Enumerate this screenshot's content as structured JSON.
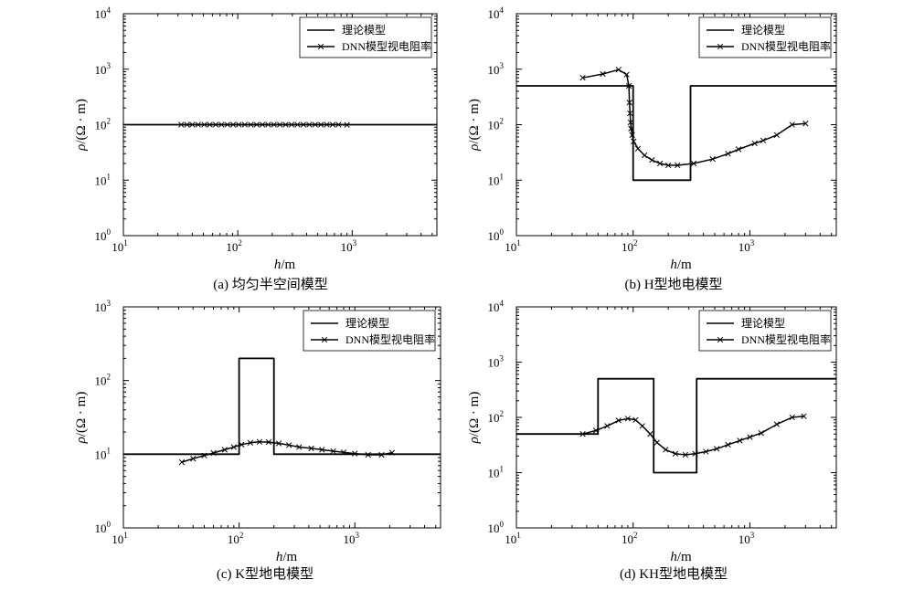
{
  "figure": {
    "panels": [
      {
        "caption": "(a) 均匀半空间模型"
      },
      {
        "caption": "(b) H型地电模型"
      },
      {
        "caption": "(c) K型地电模型"
      },
      {
        "caption": "(d) KH型地电模型"
      }
    ]
  },
  "chart_data": [
    {
      "type": "line",
      "title": "(a) 均匀半空间模型",
      "xlabel": "h/m",
      "ylabel": "ρ/(Ω · m)",
      "xscale": "log",
      "yscale": "log",
      "xlim": [
        10,
        5500
      ],
      "ylim": [
        1,
        10000
      ],
      "xticks": [
        {
          "base": "10",
          "exp": "1"
        },
        {
          "base": "10",
          "exp": "2"
        },
        {
          "base": "10",
          "exp": "3"
        }
      ],
      "yticks": [
        {
          "base": "10",
          "exp": "0"
        },
        {
          "base": "10",
          "exp": "1"
        },
        {
          "base": "10",
          "exp": "2"
        },
        {
          "base": "10",
          "exp": "3"
        },
        {
          "base": "10",
          "exp": "4"
        }
      ],
      "legend_position": "top-right",
      "grid": false,
      "series": [
        {
          "name": "理论模型",
          "style": "step",
          "x": [
            10,
            5500
          ],
          "y": [
            100,
            100
          ]
        },
        {
          "name": "DNN模型视电阻率",
          "style": "line-x",
          "x": [
            32,
            36,
            40,
            45,
            51,
            57,
            64,
            72,
            81,
            91,
            102,
            115,
            130,
            146,
            164,
            184,
            207,
            233,
            262,
            295,
            332,
            374,
            421,
            474,
            533,
            600,
            675,
            760,
            900
          ],
          "y": [
            100,
            100,
            100,
            100,
            100,
            100,
            100,
            100,
            100,
            100,
            100,
            100,
            100,
            100,
            100,
            100,
            100,
            100,
            100,
            100,
            100,
            100,
            100,
            100,
            100,
            100,
            100,
            100,
            99
          ]
        }
      ]
    },
    {
      "type": "line",
      "title": "(b) H型地电模型",
      "xlabel": "h/m",
      "ylabel": "ρ/(Ω · m)",
      "xscale": "log",
      "yscale": "log",
      "xlim": [
        10,
        5500
      ],
      "ylim": [
        1,
        10000
      ],
      "xticks": [
        {
          "base": "10",
          "exp": "1"
        },
        {
          "base": "10",
          "exp": "2"
        },
        {
          "base": "10",
          "exp": "3"
        }
      ],
      "yticks": [
        {
          "base": "10",
          "exp": "0"
        },
        {
          "base": "10",
          "exp": "1"
        },
        {
          "base": "10",
          "exp": "2"
        },
        {
          "base": "10",
          "exp": "3"
        },
        {
          "base": "10",
          "exp": "4"
        }
      ],
      "legend_position": "top-right",
      "grid": false,
      "series": [
        {
          "name": "理论模型",
          "style": "step",
          "x": [
            10,
            100,
            100,
            310,
            310,
            5500
          ],
          "y": [
            500,
            500,
            10,
            10,
            500,
            500
          ]
        },
        {
          "name": "DNN模型视电阻率",
          "style": "line-x",
          "x": [
            37,
            55,
            75,
            88,
            92,
            93,
            94,
            95,
            96,
            98,
            101,
            110,
            125,
            145,
            170,
            200,
            240,
            330,
            480,
            650,
            800,
            1100,
            1300,
            1700,
            2300,
            3000
          ],
          "y": [
            700,
            820,
            980,
            800,
            500,
            250,
            160,
            110,
            85,
            65,
            50,
            37,
            28,
            23,
            20,
            18.5,
            18.5,
            20,
            24,
            30,
            36,
            46,
            52,
            65,
            100,
            105
          ]
        }
      ]
    },
    {
      "type": "line",
      "title": "(c) K型地电模型",
      "xlabel": "h/m",
      "ylabel": "ρ/(Ω · m)",
      "xscale": "log",
      "yscale": "log",
      "xlim": [
        10,
        5500
      ],
      "ylim": [
        1,
        1000
      ],
      "xticks": [
        {
          "base": "10",
          "exp": "1"
        },
        {
          "base": "10",
          "exp": "2"
        },
        {
          "base": "10",
          "exp": "3"
        }
      ],
      "yticks": [
        {
          "base": "10",
          "exp": "0"
        },
        {
          "base": "10",
          "exp": "1"
        },
        {
          "base": "10",
          "exp": "2"
        },
        {
          "base": "10",
          "exp": "3"
        }
      ],
      "legend_position": "top-right",
      "grid": false,
      "series": [
        {
          "name": "理论模型",
          "style": "step",
          "x": [
            10,
            100,
            100,
            200,
            200,
            5500
          ],
          "y": [
            10,
            10,
            200,
            200,
            10,
            10
          ]
        },
        {
          "name": "DNN模型视电阻率",
          "style": "line-x",
          "x": [
            32,
            40,
            50,
            60,
            75,
            90,
            105,
            125,
            150,
            180,
            220,
            270,
            330,
            420,
            520,
            650,
            800,
            1000,
            1300,
            1700,
            2100
          ],
          "y": [
            7.8,
            8.7,
            9.6,
            10.4,
            11.5,
            12.5,
            13.5,
            14.3,
            14.7,
            14.6,
            14.0,
            13.3,
            12.5,
            12.0,
            11.5,
            11.0,
            10.6,
            10.2,
            9.8,
            9.8,
            10.5
          ]
        }
      ]
    },
    {
      "type": "line",
      "title": "(d) KH型地电模型",
      "xlabel": "h/m",
      "ylabel": "ρ/(Ω · m)",
      "xscale": "log",
      "yscale": "log",
      "xlim": [
        10,
        5500
      ],
      "ylim": [
        1,
        10000
      ],
      "xticks": [
        {
          "base": "10",
          "exp": "1"
        },
        {
          "base": "10",
          "exp": "2"
        },
        {
          "base": "10",
          "exp": "3"
        }
      ],
      "yticks": [
        {
          "base": "10",
          "exp": "0"
        },
        {
          "base": "10",
          "exp": "1"
        },
        {
          "base": "10",
          "exp": "2"
        },
        {
          "base": "10",
          "exp": "3"
        },
        {
          "base": "10",
          "exp": "4"
        }
      ],
      "legend_position": "top-right",
      "grid": false,
      "series": [
        {
          "name": "理论模型",
          "style": "step",
          "x": [
            10,
            50,
            50,
            150,
            150,
            350,
            350,
            5500
          ],
          "y": [
            50,
            50,
            500,
            500,
            10,
            10,
            500,
            500
          ]
        },
        {
          "name": "DNN模型视电阻率",
          "style": "line-x",
          "x": [
            37,
            48,
            60,
            75,
            90,
            105,
            120,
            140,
            160,
            190,
            230,
            280,
            340,
            420,
            520,
            650,
            820,
            1000,
            1250,
            1700,
            2300,
            2900
          ],
          "y": [
            50,
            58,
            70,
            88,
            95,
            90,
            70,
            50,
            35,
            26,
            22,
            21,
            22,
            24,
            27,
            32,
            38,
            44,
            52,
            75,
            100,
            105
          ]
        }
      ]
    }
  ]
}
